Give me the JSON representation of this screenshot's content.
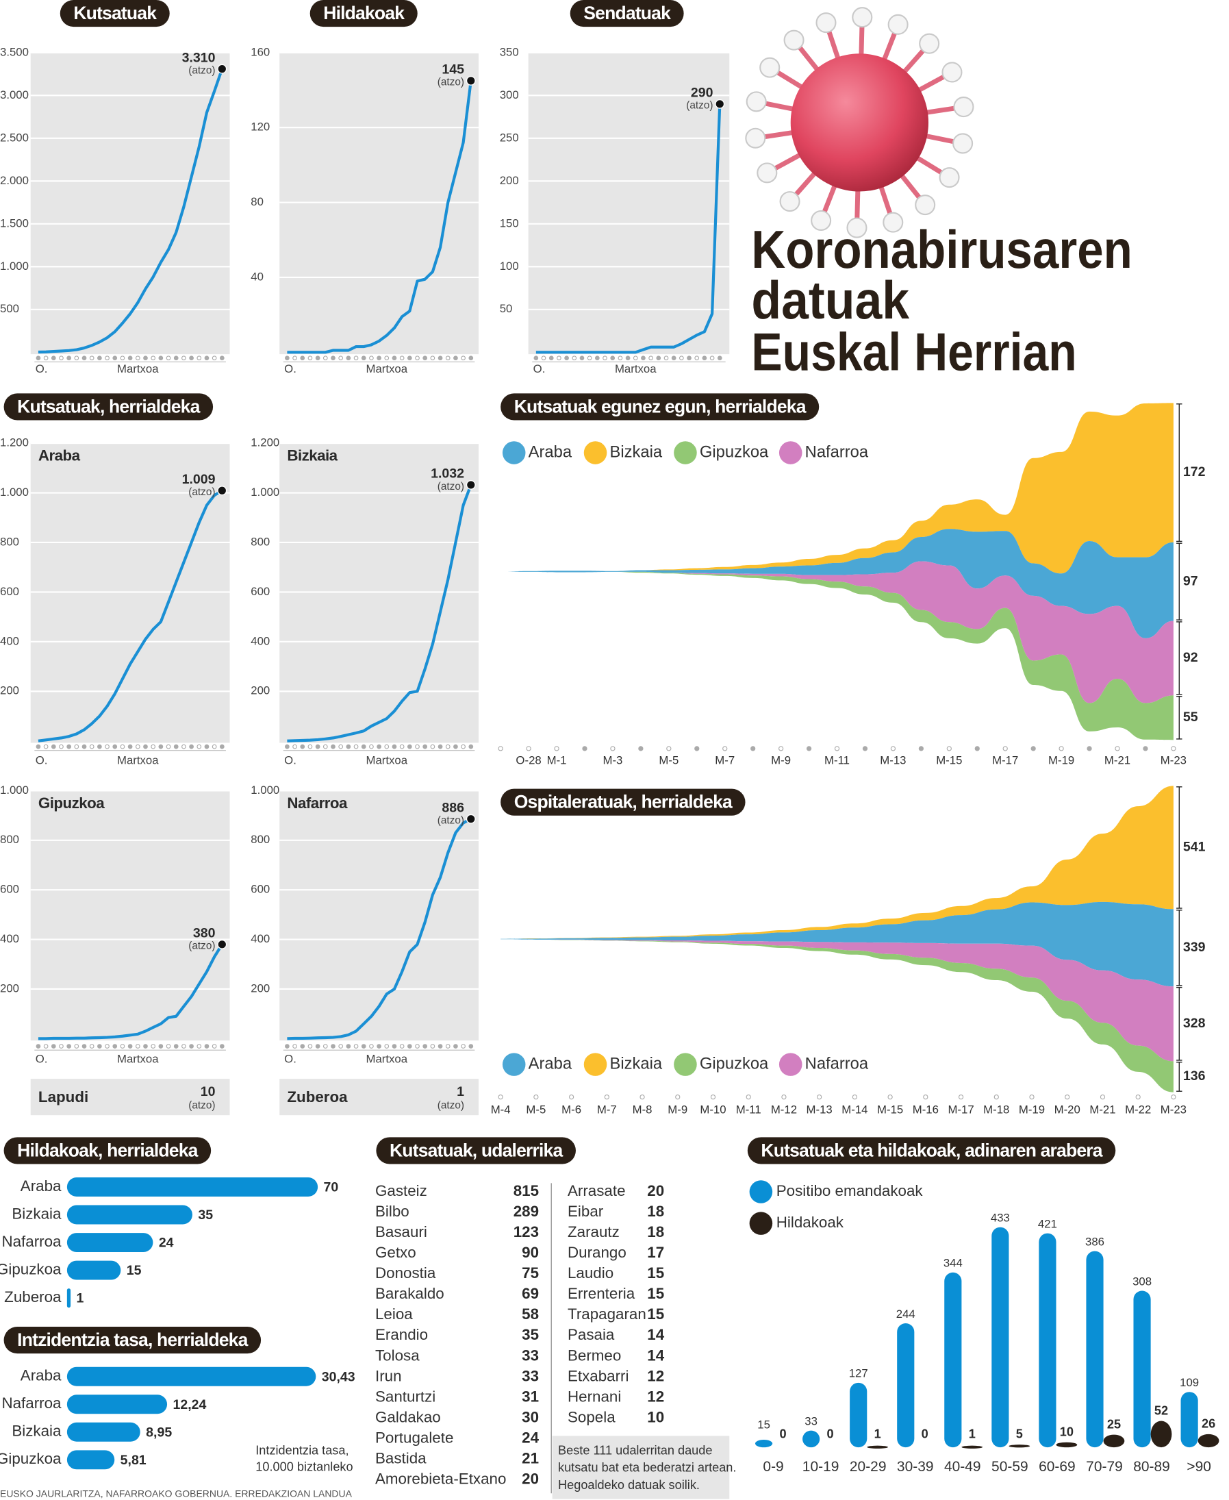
{
  "title": [
    "Koronabirusaren",
    "datuak",
    "Euskal Herrian"
  ],
  "sections": [
    "Kutsatuak, herrialdeka"
  ],
  "extras": [
    {
      "name": "Lapudi",
      "value": 10,
      "note": "(atzo)"
    },
    {
      "name": "Zuberoa",
      "value": 1,
      "note": "(atzo)"
    }
  ],
  "source": "EUSKO JAURLARITZA, NAFARROAKO GOBERNUA. ERREDAKZIOAN LANDUA",
  "chart_data": [
    {
      "type": "line",
      "title": "Kutsatuak",
      "categories": [
        "O.",
        null,
        null,
        null,
        null,
        null,
        null,
        null,
        null,
        null,
        null,
        null,
        null,
        "Martxoa",
        null,
        null,
        null,
        null,
        null,
        null,
        null,
        null,
        null,
        null,
        null
      ],
      "values": [
        2,
        5,
        10,
        15,
        20,
        30,
        50,
        80,
        120,
        170,
        240,
        340,
        450,
        580,
        740,
        880,
        1050,
        1200,
        1400,
        1700,
        2050,
        2400,
        2800,
        3050,
        3310
      ],
      "value_labels": [
        null,
        null,
        null,
        null,
        null,
        null,
        null,
        null,
        null,
        null,
        null,
        null,
        null,
        null,
        null,
        null,
        null,
        null,
        null,
        null,
        null,
        null,
        null,
        null,
        "3.310"
      ],
      "annotation": "(atzo)",
      "color": "#1a8fd4",
      "ylim": [
        0,
        3500
      ],
      "yticks": [
        500,
        {
          "value": 1000,
          "label": "1.000"
        },
        {
          "value": 1500,
          "label": "1.500"
        },
        {
          "value": 2000,
          "label": "2.000"
        },
        {
          "value": 2500,
          "label": "2.500"
        },
        {
          "value": 3000,
          "label": "3.000"
        },
        {
          "value": 3500,
          "label": "3.500"
        }
      ],
      "grid": true
    },
    {
      "type": "line",
      "title": "Hildakoak",
      "categories": [
        "O.",
        null,
        null,
        null,
        null,
        null,
        null,
        null,
        null,
        null,
        null,
        null,
        null,
        "Martxoa",
        null,
        null,
        null,
        null,
        null,
        null,
        null,
        null,
        null,
        null,
        null
      ],
      "values": [
        0,
        0,
        0,
        0,
        0,
        0,
        1,
        1,
        1,
        3,
        3,
        4,
        6,
        9,
        13,
        19,
        22,
        38,
        39,
        43,
        56,
        80,
        96,
        112,
        145
      ],
      "annotation": "(atzo)",
      "color": "#1a8fd4",
      "ylim": [
        0,
        160
      ],
      "yticks": [
        40,
        80,
        120,
        160
      ],
      "grid": true
    },
    {
      "type": "line",
      "title": "Sendatuak",
      "categories": [
        "O.",
        null,
        null,
        null,
        null,
        null,
        null,
        null,
        null,
        null,
        null,
        null,
        null,
        "Martxoa",
        null,
        null,
        null,
        null,
        null,
        null,
        null,
        null,
        null,
        null,
        null
      ],
      "values": [
        0,
        0,
        0,
        0,
        0,
        0,
        0,
        0,
        0,
        0,
        0,
        0,
        0,
        0,
        3,
        6,
        6,
        6,
        6,
        10,
        15,
        20,
        24,
        45,
        290
      ],
      "annotation": "(atzo)",
      "color": "#1a8fd4",
      "ylim": [
        0,
        350
      ],
      "yticks": [
        50,
        100,
        150,
        200,
        250,
        300,
        350
      ],
      "grid": true
    },
    {
      "type": "line",
      "title": "Araba",
      "categories": [
        "O.",
        null,
        null,
        null,
        null,
        null,
        null,
        null,
        null,
        null,
        null,
        null,
        null,
        "Martxoa",
        null,
        null,
        null,
        null,
        null,
        null,
        null,
        null,
        null,
        null,
        null
      ],
      "values": [
        0,
        4,
        8,
        12,
        18,
        28,
        45,
        70,
        100,
        140,
        190,
        250,
        310,
        360,
        410,
        450,
        480,
        560,
        640,
        720,
        800,
        880,
        950,
        990,
        1009
      ],
      "value_labels": [
        null,
        null,
        null,
        null,
        null,
        null,
        null,
        null,
        null,
        null,
        null,
        null,
        null,
        null,
        null,
        null,
        null,
        null,
        null,
        null,
        null,
        null,
        null,
        null,
        "1.009"
      ],
      "annotation": "(atzo)",
      "color": "#1a8fd4",
      "ylim": [
        0,
        1200
      ],
      "yticks": [
        200,
        400,
        600,
        800,
        {
          "value": 1000,
          "label": "1.000"
        },
        {
          "value": 1200,
          "label": "1.200"
        }
      ],
      "grid": true
    },
    {
      "type": "line",
      "title": "Bizkaia",
      "categories": [
        "O.",
        null,
        null,
        null,
        null,
        null,
        null,
        null,
        null,
        null,
        null,
        null,
        null,
        "Martxoa",
        null,
        null,
        null,
        null,
        null,
        null,
        null,
        null,
        null,
        null,
        null
      ],
      "values": [
        0,
        1,
        2,
        3,
        5,
        8,
        12,
        18,
        25,
        32,
        40,
        60,
        75,
        90,
        120,
        160,
        195,
        200,
        290,
        390,
        520,
        650,
        800,
        950,
        1032
      ],
      "value_labels": [
        null,
        null,
        null,
        null,
        null,
        null,
        null,
        null,
        null,
        null,
        null,
        null,
        null,
        null,
        null,
        null,
        null,
        null,
        null,
        null,
        null,
        null,
        null,
        null,
        "1.032"
      ],
      "annotation": "(atzo)",
      "color": "#1a8fd4",
      "ylim": [
        0,
        1200
      ],
      "yticks": [
        200,
        400,
        600,
        800,
        {
          "value": 1000,
          "label": "1.000"
        },
        {
          "value": 1200,
          "label": "1.200"
        }
      ],
      "grid": true
    },
    {
      "type": "line",
      "title": "Gipuzkoa",
      "categories": [
        "O.",
        null,
        null,
        null,
        null,
        null,
        null,
        null,
        null,
        null,
        null,
        null,
        null,
        "Martxoa",
        null,
        null,
        null,
        null,
        null,
        null,
        null,
        null,
        null,
        null,
        null
      ],
      "values": [
        0,
        0,
        1,
        1,
        1,
        2,
        2,
        3,
        4,
        5,
        7,
        10,
        14,
        18,
        30,
        45,
        60,
        85,
        90,
        130,
        170,
        220,
        270,
        330,
        380
      ],
      "annotation": "(atzo)",
      "color": "#1a8fd4",
      "ylim": [
        0,
        1000
      ],
      "yticks": [
        200,
        400,
        600,
        800,
        {
          "value": 1000,
          "label": "1.000"
        }
      ],
      "grid": true
    },
    {
      "type": "line",
      "title": "Nafarroa",
      "categories": [
        "O.",
        null,
        null,
        null,
        null,
        null,
        null,
        null,
        null,
        null,
        null,
        null,
        null,
        "Martxoa",
        null,
        null,
        null,
        null,
        null,
        null,
        null,
        null,
        null,
        null,
        null
      ],
      "values": [
        0,
        1,
        1,
        2,
        3,
        4,
        5,
        8,
        15,
        30,
        60,
        90,
        130,
        180,
        200,
        270,
        350,
        380,
        470,
        580,
        650,
        750,
        830,
        870,
        886
      ],
      "annotation": "(atzo)",
      "color": "#1a8fd4",
      "ylim": [
        0,
        1000
      ],
      "yticks": [
        200,
        400,
        600,
        800,
        {
          "value": 1000,
          "label": "1.000"
        }
      ],
      "grid": true
    },
    {
      "type": "stream",
      "title": "Kutsatuak egunez egun, herrialdeka",
      "categories": [
        null,
        "O-28",
        "M-1",
        null,
        "M-3",
        null,
        "M-5",
        null,
        "M-7",
        null,
        "M-9",
        null,
        "M-11",
        null,
        "M-13",
        null,
        "M-15",
        null,
        "M-17",
        null,
        "M-19",
        null,
        "M-21",
        null,
        "M-23"
      ],
      "series": [
        {
          "name": "Araba",
          "color": "#4ba7d5",
          "values": [
            0,
            1,
            2,
            2,
            1,
            2,
            3,
            4,
            5,
            7,
            9,
            12,
            15,
            20,
            25,
            30,
            45,
            70,
            55,
            40,
            40,
            90,
            60,
            100,
            97
          ]
        },
        {
          "name": "Bizkaia",
          "color": "#fbbf2d",
          "values": [
            0,
            0,
            0,
            0,
            0,
            0,
            1,
            2,
            3,
            4,
            5,
            8,
            10,
            12,
            15,
            20,
            30,
            40,
            20,
            130,
            150,
            160,
            175,
            190,
            172
          ]
        },
        {
          "name": "Gipuzkoa",
          "color": "#92c874",
          "values": [
            0,
            0,
            0,
            0,
            0,
            1,
            1,
            1,
            2,
            3,
            5,
            6,
            8,
            10,
            12,
            15,
            20,
            18,
            25,
            30,
            45,
            35,
            60,
            45,
            55
          ]
        },
        {
          "name": "Nafarroa",
          "color": "#d27fc0",
          "values": [
            0,
            0,
            0,
            0,
            0,
            0,
            0,
            1,
            1,
            2,
            3,
            5,
            8,
            15,
            25,
            60,
            70,
            50,
            40,
            80,
            60,
            110,
            90,
            80,
            92
          ]
        }
      ]
    },
    {
      "type": "stream",
      "title": "Ospitaleratuak, herrialdeka",
      "categories": [
        "M-4",
        "M-5",
        "M-6",
        "M-7",
        "M-8",
        "M-9",
        "M-10",
        "M-11",
        "M-12",
        "M-13",
        "M-14",
        "M-15",
        "M-16",
        "M-17",
        "M-18",
        "M-19",
        "M-20",
        "M-21",
        "M-22",
        "M-23"
      ],
      "series": [
        {
          "name": "Araba",
          "color": "#4ba7d5",
          "values": [
            2,
            4,
            6,
            9,
            12,
            16,
            22,
            30,
            40,
            52,
            65,
            80,
            100,
            125,
            150,
            190,
            240,
            300,
            330,
            339
          ]
        },
        {
          "name": "Bizkaia",
          "color": "#fbbf2d",
          "values": [
            0,
            1,
            1,
            2,
            3,
            4,
            6,
            8,
            10,
            14,
            18,
            25,
            32,
            40,
            50,
            70,
            200,
            300,
            430,
            541
          ]
        },
        {
          "name": "Gipuzkoa",
          "color": "#92c874",
          "values": [
            0,
            0,
            1,
            1,
            2,
            3,
            5,
            7,
            10,
            14,
            18,
            24,
            32,
            40,
            50,
            62,
            78,
            95,
            115,
            136
          ]
        },
        {
          "name": "Nafarroa",
          "color": "#d27fc0",
          "values": [
            0,
            0,
            1,
            2,
            3,
            5,
            8,
            12,
            18,
            26,
            36,
            50,
            65,
            85,
            110,
            140,
            180,
            230,
            290,
            328
          ]
        }
      ]
    },
    {
      "type": "hbar",
      "title": "Hildakoak, herrialdeka",
      "categories": [
        "Araba",
        "Bizkaia",
        "Nafarroa",
        "Gipuzkoa",
        "Zuberoa"
      ],
      "values": [
        70,
        35,
        24,
        15,
        1
      ],
      "color": "#0a8fd5"
    },
    {
      "type": "hbar",
      "title": "Intzidentzia tasa, herrialdeka",
      "categories": [
        "Araba",
        "Nafarroa",
        "Bizkaia",
        "Gipuzkoa"
      ],
      "values": [
        30.43,
        12.24,
        8.95,
        5.81
      ],
      "value_labels": [
        "30,43",
        "12,24",
        "8,95",
        "5,81"
      ],
      "color": "#0a8fd5",
      "note": [
        "Intzidentzia tasa,",
        "10.000 biztanleko"
      ]
    },
    {
      "type": "table",
      "title": "Kutsatuak, udalerrika",
      "columns": [
        [
          [
            "Gasteiz",
            815
          ],
          [
            "Bilbo",
            289
          ],
          [
            "Basauri",
            123
          ],
          [
            "Getxo",
            90
          ],
          [
            "Donostia",
            75
          ],
          [
            "Barakaldo",
            69
          ],
          [
            "Leioa",
            58
          ],
          [
            "Erandio",
            35
          ],
          [
            "Tolosa",
            33
          ],
          [
            "Irun",
            33
          ],
          [
            "Santurtzi",
            31
          ],
          [
            "Galdakao",
            30
          ],
          [
            "Portugalete",
            24
          ],
          [
            "Bastida",
            21
          ],
          [
            "Amorebieta-Etxano",
            20
          ]
        ],
        [
          [
            "Arrasate",
            20
          ],
          [
            "Eibar",
            18
          ],
          [
            "Zarautz",
            18
          ],
          [
            "Durango",
            17
          ],
          [
            "Laudio",
            15
          ],
          [
            "Errenteria",
            15
          ],
          [
            "Trapagaran",
            15
          ],
          [
            "Pasaia",
            14
          ],
          [
            "Bermeo",
            14
          ],
          [
            "Etxabarri",
            12
          ],
          [
            "Hernani",
            12
          ],
          [
            "Sopela",
            10
          ]
        ]
      ],
      "note": [
        "Beste 111 udalerritan daude",
        "kutsatu bat eta bederatzi artean.",
        "Hegoaldeko datuak soilik."
      ]
    },
    {
      "type": "bar",
      "title": "Kutsatuak eta hildakoak, adinaren arabera",
      "categories": [
        "0-9",
        "10-19",
        "20-29",
        "30-39",
        "40-49",
        "50-59",
        "60-69",
        "70-79",
        "80-89",
        ">90"
      ],
      "series": [
        {
          "name": "Positibo emandakoak",
          "color": "#0a8fd5",
          "values": [
            15,
            33,
            127,
            244,
            344,
            433,
            421,
            386,
            308,
            109
          ]
        },
        {
          "name": "Hildakoak",
          "color": "#2a1f16",
          "values": [
            0,
            0,
            1,
            0,
            1,
            5,
            10,
            25,
            52,
            26
          ]
        }
      ]
    }
  ]
}
